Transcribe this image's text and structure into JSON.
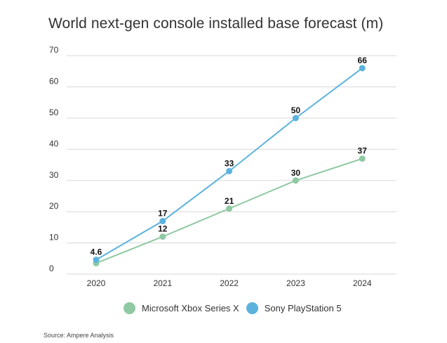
{
  "chart_data": {
    "type": "line",
    "title": "World next-gen console installed base forecast (m)",
    "categories": [
      "2020",
      "2021",
      "2022",
      "2023",
      "2024"
    ],
    "ylim": [
      0,
      70
    ],
    "yticks": [
      0,
      10,
      20,
      30,
      40,
      50,
      60,
      70
    ],
    "grid": true,
    "legend": "bottom",
    "series": [
      {
        "name": "Microsoft Xbox Series X",
        "values": [
          3.5,
          12,
          21,
          30,
          37
        ],
        "labels": [
          "",
          "12",
          "21",
          "30",
          "37"
        ],
        "color": "#8fc9a3"
      },
      {
        "name": "Sony PlayStation 5",
        "values": [
          4.6,
          17,
          33,
          50,
          66
        ],
        "labels": [
          "4.6",
          "17",
          "33",
          "50",
          "66"
        ],
        "color": "#5bb3dd"
      }
    ]
  },
  "source": "Source: Ampere Analysis"
}
